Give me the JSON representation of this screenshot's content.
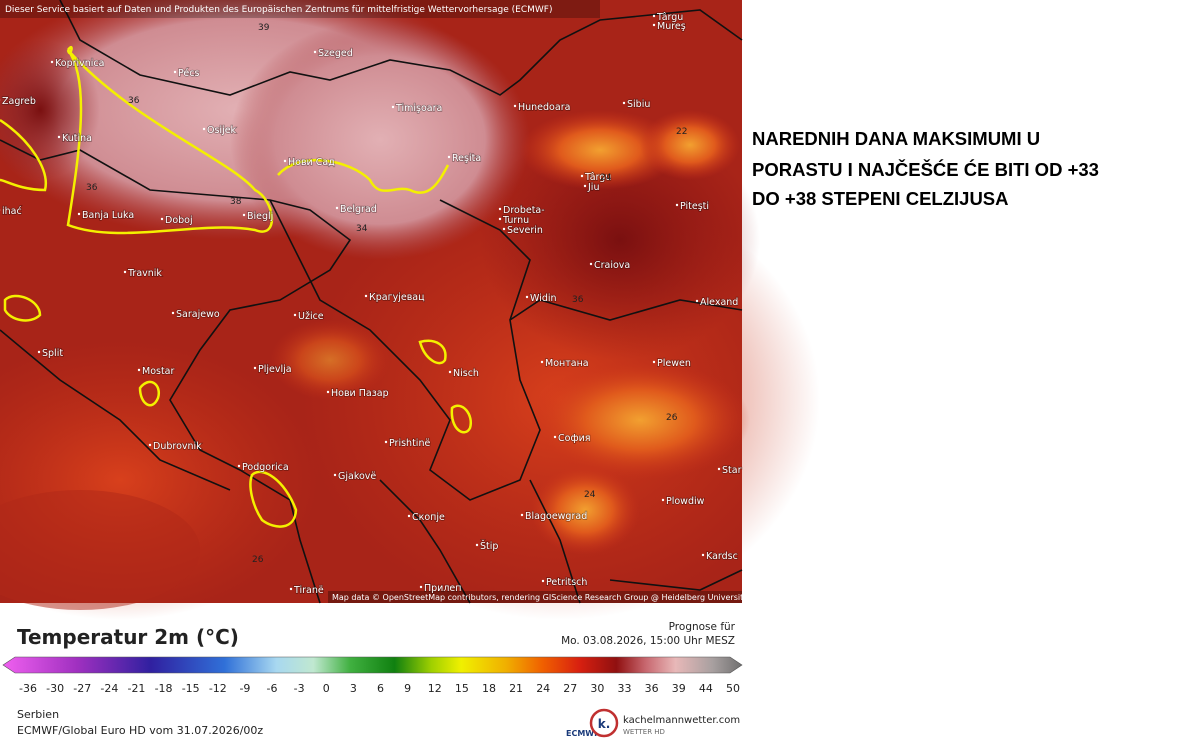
{
  "header_note": "Dieser Service basiert auf Daten und Produkten des Europäischen Zentrums für mittelfristige Wettervorhersage (ECMWF)",
  "map_credit": "Map data © OpenStreetMap contributors, rendering GIScience Research Group @ Heidelberg University",
  "cities": [
    "Koprivnica",
    "Pécs",
    "Szeged",
    "Zagreb",
    "Osijek",
    "Timişoara",
    "Hunedoara",
    "Sibiu",
    "Târgu",
    "Mureş",
    "Kutina",
    "Нови Сад",
    "Reşita",
    "Târgu",
    "Jiu",
    "Banja Luka",
    "Doboj",
    "Bieglj",
    "Belgrad",
    "Drobeta-",
    "Turnu",
    "Severin",
    "Piteşti",
    "ihać",
    "Craiova",
    "Travnik",
    "Sarajewo",
    "Užice",
    "Крагујевац",
    "Widin",
    "Alexand",
    "Split",
    "Mostar",
    "Pljevlja",
    "Nisch",
    "Монтана",
    "Plewen",
    "Нови Пазар",
    "Dubrovnik",
    "Prishtinë",
    "София",
    "Podgorica",
    "Gjakovë",
    "Star",
    "Скопје",
    "Blagoewgrad",
    "Plowdiw",
    "Štip",
    "Kardsc",
    "Tiranë",
    "Petritsch",
    "Прилеп"
  ],
  "contour_labels": [
    "39",
    "36",
    "36",
    "38",
    "34",
    "22",
    "24",
    "24",
    "26",
    "36",
    "26"
  ],
  "legend": {
    "title": "Temperatur 2m (°C)",
    "forecast_label": "Prognose für",
    "forecast_time": "Mo. 03.08.2026, 15:00 Uhr MESZ",
    "ticks": [
      -36,
      -30,
      -27,
      -24,
      -21,
      -18,
      -15,
      -12,
      -9,
      -6,
      -3,
      0,
      3,
      6,
      9,
      12,
      15,
      18,
      21,
      24,
      27,
      30,
      33,
      36,
      39,
      44,
      50
    ]
  },
  "footer": {
    "region": "Serbien",
    "model": "ECMWF/Global Euro HD vom  31.07.2026/00z",
    "ecmwf_logo": "ECMWF",
    "site": "kachelmannwetter.com",
    "site_sub": "WETTER HD",
    "site_logo": "k."
  },
  "headline": [
    "NAREDNIH DANA MAKSIMUMI U",
    "PORASTU I NAJČEŠĆE ĆE BITI OD +33",
    "DO +38 STEPENI CELZIJUSA"
  ]
}
